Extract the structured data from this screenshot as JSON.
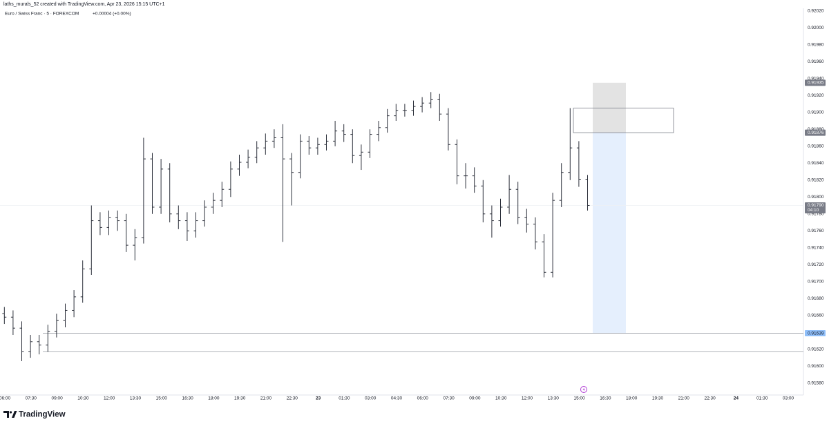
{
  "header": {
    "author_line": "laths_murals_52 created with TradingView.com, Apr 23, 2026 15:15 UTC+1",
    "symbol_line": "Euro / Swiss Franc · 5 · FOREXCOM",
    "change": "+0.00004 (+0.00%)"
  },
  "chart_data": {
    "type": "ohlc",
    "color": "#2a2e39",
    "grid": false,
    "categories": [
      "06:00",
      "07:30",
      "09:00",
      "10:30",
      "12:00",
      "13:30",
      "15:00",
      "16:30",
      "18:00",
      "19:30",
      "21:00",
      "22:30",
      "23",
      "01:30",
      "03:00",
      "04:30",
      "06:00",
      "07:30",
      "09:00",
      "10:30",
      "12:00",
      "13:30",
      "15:00",
      "16:30",
      "18:00",
      "19:30",
      "21:00",
      "22:30",
      "24",
      "01:30",
      "03:00"
    ],
    "open": [
      0.91662,
      0.91658,
      0.91645,
      0.91617,
      0.91629,
      0.91625,
      0.91641,
      0.91654,
      0.91666,
      0.91682,
      0.91715,
      0.91772,
      0.91764,
      0.91776,
      0.91772,
      0.91743,
      0.91752,
      0.91845,
      0.91788,
      0.91833,
      0.9178,
      0.91772,
      0.9176,
      0.91772,
      0.91788,
      0.91796,
      0.91809,
      0.91833,
      0.91841,
      0.91847,
      0.91858,
      0.91866,
      0.9187,
      0.91845,
      0.91829,
      0.91866,
      0.91858,
      0.91862,
      0.91866,
      0.91878,
      0.91874,
      0.91849,
      0.91853,
      0.91874,
      0.91882,
      0.91896,
      0.91902,
      0.91902,
      0.91907,
      0.91911,
      0.91915,
      0.91898,
      0.91862,
      0.91825,
      0.91825,
      0.91813,
      0.9178,
      0.91772,
      0.91788,
      0.91809,
      0.91776,
      0.91768,
      0.91747,
      0.91711,
      0.91796,
      0.91829,
      0.91858,
      0.91821
    ],
    "high": [
      0.9167,
      0.91666,
      0.91653,
      0.91637,
      0.91637,
      0.91649,
      0.91662,
      0.91674,
      0.9169,
      0.91725,
      0.9179,
      0.91782,
      0.91784,
      0.91784,
      0.9178,
      0.91762,
      0.9187,
      0.91852,
      0.91845,
      0.9184,
      0.9179,
      0.91782,
      0.91782,
      0.91796,
      0.91805,
      0.91818,
      0.91842,
      0.9185,
      0.91856,
      0.91866,
      0.91875,
      0.9188,
      0.91886,
      0.91852,
      0.91874,
      0.91872,
      0.9187,
      0.91874,
      0.9189,
      0.91886,
      0.9188,
      0.91862,
      0.9188,
      0.9189,
      0.91904,
      0.9191,
      0.9191,
      0.91914,
      0.91918,
      0.91924,
      0.91922,
      0.91905,
      0.91868,
      0.9184,
      0.91835,
      0.9182,
      0.9179,
      0.91798,
      0.91826,
      0.91818,
      0.91786,
      0.91776,
      0.91756,
      0.91805,
      0.9184,
      0.91905,
      0.91866,
      0.91826
    ],
    "low": [
      0.9165,
      0.91637,
      0.91606,
      0.9161,
      0.91614,
      0.91617,
      0.91634,
      0.91646,
      0.91658,
      0.91675,
      0.91708,
      0.91755,
      0.91755,
      0.9176,
      0.91735,
      0.91725,
      0.91745,
      0.9178,
      0.9178,
      0.9177,
      0.91762,
      0.91748,
      0.91752,
      0.91765,
      0.9178,
      0.91788,
      0.918,
      0.91825,
      0.91834,
      0.9184,
      0.9185,
      0.91858,
      0.91747,
      0.9179,
      0.91822,
      0.9185,
      0.9185,
      0.91855,
      0.9186,
      0.91865,
      0.9184,
      0.91832,
      0.91846,
      0.91866,
      0.91876,
      0.9189,
      0.91895,
      0.91896,
      0.919,
      0.91905,
      0.9189,
      0.91855,
      0.91815,
      0.9181,
      0.91805,
      0.9177,
      0.91752,
      0.91765,
      0.9178,
      0.91768,
      0.91758,
      0.91738,
      0.91705,
      0.91705,
      0.91788,
      0.9182,
      0.91812,
      0.91784
    ],
    "close": [
      0.91658,
      0.91645,
      0.91617,
      0.91629,
      0.91625,
      0.91641,
      0.91654,
      0.91666,
      0.91682,
      0.91715,
      0.91772,
      0.91764,
      0.91776,
      0.91772,
      0.91743,
      0.91752,
      0.91845,
      0.91788,
      0.91833,
      0.9178,
      0.91772,
      0.9176,
      0.91772,
      0.91788,
      0.91796,
      0.91809,
      0.91833,
      0.91841,
      0.91847,
      0.91858,
      0.91866,
      0.9187,
      0.91845,
      0.91829,
      0.91866,
      0.91858,
      0.91862,
      0.91866,
      0.91878,
      0.91874,
      0.91849,
      0.91853,
      0.91874,
      0.91882,
      0.91896,
      0.91902,
      0.91902,
      0.91907,
      0.91911,
      0.91915,
      0.91898,
      0.91862,
      0.91825,
      0.91825,
      0.91813,
      0.9178,
      0.91772,
      0.91788,
      0.91809,
      0.91776,
      0.91768,
      0.91747,
      0.91711,
      0.91796,
      0.91829,
      0.91858,
      0.91821,
      0.9179
    ],
    "ylim": [
      0.91566,
      0.92023
    ],
    "yticks": [
      {
        "value": 0.9158,
        "label": "0.91580"
      },
      {
        "value": 0.916,
        "label": "0.91600"
      },
      {
        "value": 0.9162,
        "label": "0.91620"
      },
      {
        "value": 0.9164,
        "label": "0.91640"
      },
      {
        "value": 0.9166,
        "label": "0.91660"
      },
      {
        "value": 0.9168,
        "label": "0.91680"
      },
      {
        "value": 0.917,
        "label": "0.91700"
      },
      {
        "value": 0.9172,
        "label": "0.91720"
      },
      {
        "value": 0.9174,
        "label": "0.91740"
      },
      {
        "value": 0.9176,
        "label": "0.91760"
      },
      {
        "value": 0.9178,
        "label": "0.91780"
      },
      {
        "value": 0.918,
        "label": "0.91800"
      },
      {
        "value": 0.9182,
        "label": "0.91820"
      },
      {
        "value": 0.9184,
        "label": "0.91840"
      },
      {
        "value": 0.9186,
        "label": "0.91860"
      },
      {
        "value": 0.9188,
        "label": "0.91880"
      },
      {
        "value": 0.919,
        "label": "0.91900"
      },
      {
        "value": 0.9192,
        "label": "0.91920"
      },
      {
        "value": 0.9194,
        "label": "0.91940"
      },
      {
        "value": 0.9196,
        "label": "0.91960"
      },
      {
        "value": 0.9198,
        "label": "0.91980"
      },
      {
        "value": 0.92,
        "label": "0.92000"
      },
      {
        "value": 0.9202,
        "label": "0.92020"
      }
    ],
    "zones": [
      {
        "top": 0.91935,
        "bottom": 0.91876,
        "color": "#e3e3e3"
      },
      {
        "top": 0.91876,
        "bottom": 0.91639,
        "color": "#e5effd"
      },
      {
        "top": 0.91905,
        "bottom": 0.91876,
        "color": "#787b86"
      }
    ],
    "levels": [
      0.91639,
      0.91617
    ],
    "price_labels": [
      {
        "value": 0.91935,
        "color": "#787b86"
      },
      {
        "value": 0.91876,
        "color": "#787b86"
      },
      {
        "value": 0.9179,
        "label": "0.91790",
        "color": "#787b86"
      },
      {
        "value": 0.91639,
        "color": "#90bff9"
      }
    ],
    "countdown": "04:10"
  },
  "footer": {
    "brand": "TradingView"
  }
}
